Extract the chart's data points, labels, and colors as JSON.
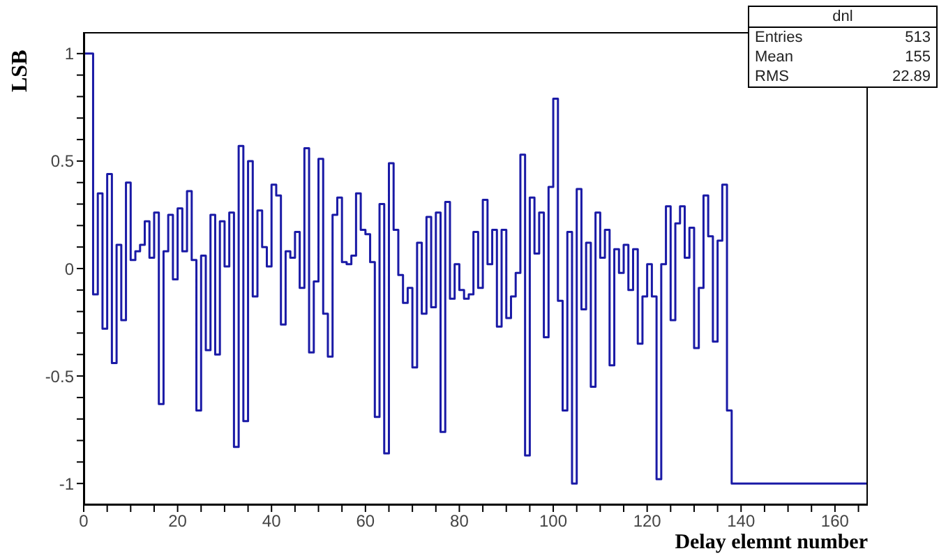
{
  "chart_data": {
    "type": "step",
    "xlabel": "Delay elemnt number",
    "ylabel": "LSB",
    "annotations": [
      "dnl",
      "Entries",
      "513",
      "Mean",
      "155",
      "RMS",
      "22.89"
    ],
    "color": "#1a1aa6",
    "grid": false,
    "legend": false,
    "marker": "none",
    "line_style": "solid",
    "xlim": [
      0,
      167
    ],
    "ylim": [
      -1.1,
      1.1
    ],
    "xticks": [
      0,
      {
        "value": 5,
        "label": null
      },
      {
        "value": 10,
        "label": null
      },
      {
        "value": 15,
        "label": null
      },
      20,
      {
        "value": 25,
        "label": null
      },
      {
        "value": 30,
        "label": null
      },
      {
        "value": 35,
        "label": null
      },
      40,
      {
        "value": 45,
        "label": null
      },
      {
        "value": 50,
        "label": null
      },
      {
        "value": 55,
        "label": null
      },
      60,
      {
        "value": 65,
        "label": null
      },
      {
        "value": 70,
        "label": null
      },
      {
        "value": 75,
        "label": null
      },
      80,
      {
        "value": 85,
        "label": null
      },
      {
        "value": 90,
        "label": null
      },
      {
        "value": 95,
        "label": null
      },
      100,
      {
        "value": 105,
        "label": null
      },
      {
        "value": 110,
        "label": null
      },
      {
        "value": 115,
        "label": null
      },
      120,
      {
        "value": 125,
        "label": null
      },
      {
        "value": 130,
        "label": null
      },
      {
        "value": 135,
        "label": null
      },
      140,
      {
        "value": 145,
        "label": null
      },
      {
        "value": 150,
        "label": null
      },
      {
        "value": 155,
        "label": null
      },
      160,
      {
        "value": 165,
        "label": null
      }
    ],
    "yticks": [
      -1,
      {
        "value": -0.9,
        "label": null
      },
      {
        "value": -0.8,
        "label": null
      },
      {
        "value": -0.7,
        "label": null
      },
      {
        "value": -0.6,
        "label": null
      },
      -0.5,
      {
        "value": -0.4,
        "label": null
      },
      {
        "value": -0.3,
        "label": null
      },
      {
        "value": -0.2,
        "label": null
      },
      {
        "value": -0.1,
        "label": null
      },
      0,
      {
        "value": 0.1,
        "label": null
      },
      {
        "value": 0.2,
        "label": null
      },
      {
        "value": 0.3,
        "label": null
      },
      {
        "value": 0.4,
        "label": null
      },
      0.5,
      {
        "value": 0.6,
        "label": null
      },
      {
        "value": 0.7,
        "label": null
      },
      {
        "value": 0.8,
        "label": null
      },
      {
        "value": 0.9,
        "label": null
      },
      1
    ],
    "x": [
      0,
      1,
      2,
      3,
      4,
      5,
      6,
      7,
      8,
      9,
      10,
      11,
      12,
      13,
      14,
      15,
      16,
      17,
      18,
      19,
      20,
      21,
      22,
      23,
      24,
      25,
      26,
      27,
      28,
      29,
      30,
      31,
      32,
      33,
      34,
      35,
      36,
      37,
      38,
      39,
      40,
      41,
      42,
      43,
      44,
      45,
      46,
      47,
      48,
      49,
      50,
      51,
      52,
      53,
      54,
      55,
      56,
      57,
      58,
      59,
      60,
      61,
      62,
      63,
      64,
      65,
      66,
      67,
      68,
      69,
      70,
      71,
      72,
      73,
      74,
      75,
      76,
      77,
      78,
      79,
      80,
      81,
      82,
      83,
      84,
      85,
      86,
      87,
      88,
      89,
      90,
      91,
      92,
      93,
      94,
      95,
      96,
      97,
      98,
      99,
      100,
      101,
      102,
      103,
      104,
      105,
      106,
      107,
      108,
      109,
      110,
      111,
      112,
      113,
      114,
      115,
      116,
      117,
      118,
      119,
      120,
      121,
      122,
      123,
      124,
      125,
      126,
      127,
      128,
      129,
      130,
      131,
      132,
      133,
      134,
      135,
      136,
      137,
      138,
      139,
      140,
      141,
      142,
      143,
      144,
      145,
      146,
      147,
      148,
      149,
      150,
      151,
      152,
      153,
      154,
      155,
      156,
      157,
      158,
      159,
      160,
      161,
      162,
      163,
      164,
      165,
      166,
      167
    ],
    "values": [
      1.0,
      1.0,
      -0.12,
      0.35,
      -0.28,
      0.44,
      -0.44,
      0.11,
      -0.24,
      0.4,
      0.04,
      0.08,
      0.11,
      0.22,
      0.05,
      0.26,
      -0.63,
      0.08,
      0.25,
      -0.05,
      0.28,
      0.08,
      0.36,
      0.04,
      -0.66,
      0.06,
      -0.38,
      0.25,
      -0.4,
      0.22,
      0.01,
      0.26,
      -0.83,
      0.57,
      -0.71,
      0.5,
      -0.13,
      0.27,
      0.1,
      0.01,
      0.39,
      0.34,
      -0.26,
      0.08,
      0.05,
      0.17,
      -0.09,
      0.56,
      -0.39,
      -0.06,
      0.51,
      -0.21,
      -0.41,
      0.25,
      0.33,
      0.03,
      0.02,
      0.06,
      0.35,
      0.18,
      0.16,
      0.03,
      -0.69,
      0.3,
      -0.86,
      0.49,
      0.18,
      -0.03,
      -0.16,
      -0.09,
      -0.46,
      0.12,
      -0.21,
      0.24,
      -0.18,
      0.26,
      -0.76,
      0.31,
      -0.14,
      0.02,
      -0.1,
      -0.14,
      -0.12,
      0.17,
      -0.09,
      0.32,
      0.02,
      0.18,
      -0.27,
      0.18,
      -0.23,
      -0.13,
      -0.02,
      0.53,
      -0.87,
      0.33,
      0.07,
      0.26,
      -0.32,
      0.38,
      0.79,
      -0.15,
      -0.66,
      0.17,
      -1.0,
      0.37,
      -0.19,
      0.12,
      -0.55,
      0.26,
      0.05,
      0.18,
      -0.45,
      0.09,
      -0.02,
      0.11,
      -0.1,
      0.09,
      -0.35,
      -0.13,
      0.02,
      -0.13,
      -0.98,
      0.02,
      0.29,
      -0.24,
      0.21,
      0.29,
      0.05,
      0.19,
      -0.37,
      -0.09,
      0.34,
      0.15,
      -0.34,
      0.13,
      0.39,
      -0.66,
      -1,
      -1,
      -1,
      -1,
      -1,
      -1,
      -1,
      -1,
      -1,
      -1,
      -1,
      -1,
      -1,
      -1,
      -1,
      -1,
      -1,
      -1,
      -1,
      -1,
      -1,
      -1,
      -1,
      -1,
      -1,
      -1,
      -1,
      -1,
      -1,
      -1
    ]
  }
}
